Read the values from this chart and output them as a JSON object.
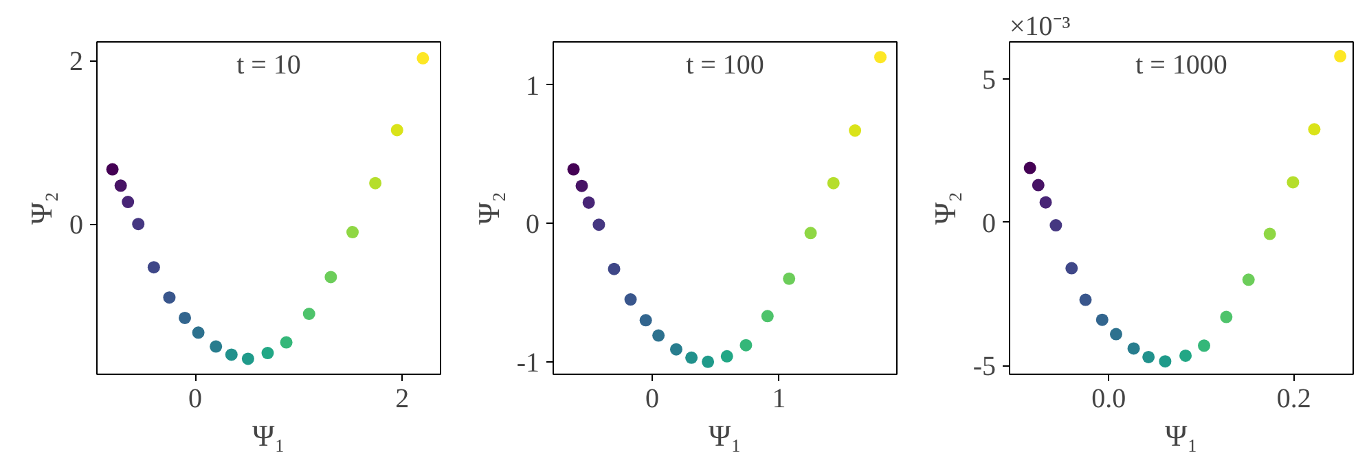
{
  "chart_data": [
    {
      "type": "scatter",
      "title": "t = 10",
      "xlabel": "Ψ₁",
      "ylabel": "Ψ₂",
      "marker": "circle",
      "xlim": [
        -0.95,
        2.37
      ],
      "ylim": [
        -1.84,
        2.23
      ],
      "xticks": [
        0,
        2
      ],
      "yticks": [
        0,
        2
      ],
      "x": [
        -0.8,
        -0.72,
        -0.65,
        -0.55,
        -0.4,
        -0.25,
        -0.1,
        0.03,
        0.2,
        0.35,
        0.51,
        0.7,
        0.88,
        1.1,
        1.31,
        1.52,
        1.74,
        1.95,
        2.2
      ],
      "values": [
        0.67,
        0.47,
        0.27,
        0.0,
        -0.53,
        -0.9,
        -1.15,
        -1.33,
        -1.5,
        -1.6,
        -1.65,
        -1.58,
        -1.45,
        -1.1,
        -0.65,
        -0.1,
        0.5,
        1.15,
        2.03
      ],
      "colors": [
        "#440154",
        "#471365",
        "#482576",
        "#453781",
        "#3f4788",
        "#39568c",
        "#32658e",
        "#2d718e",
        "#287d8e",
        "#21918c",
        "#1f9a8a",
        "#22a785",
        "#35b779",
        "#4ec36b",
        "#6ccd5a",
        "#8fd744",
        "#b5de2b",
        "#dae319",
        "#fde725"
      ]
    },
    {
      "type": "scatter",
      "title": "t = 100",
      "xlabel": "Ψ₁",
      "ylabel": "Ψ₂",
      "marker": "circle",
      "xlim": [
        -0.78,
        1.93
      ],
      "ylim": [
        -1.09,
        1.31
      ],
      "xticks": [
        0,
        1
      ],
      "yticks": [
        -1,
        0,
        1
      ],
      "x": [
        -0.62,
        -0.555,
        -0.5,
        -0.42,
        -0.3,
        -0.17,
        -0.05,
        0.05,
        0.19,
        0.31,
        0.44,
        0.59,
        0.74,
        0.91,
        1.08,
        1.25,
        1.43,
        1.6,
        1.8
      ],
      "values": [
        0.39,
        0.27,
        0.15,
        -0.01,
        -0.33,
        -0.55,
        -0.7,
        -0.81,
        -0.91,
        -0.97,
        -1.0,
        -0.96,
        -0.88,
        -0.67,
        -0.4,
        -0.07,
        0.29,
        0.67,
        1.2
      ],
      "colors": [
        "#440154",
        "#471365",
        "#482576",
        "#453781",
        "#3f4788",
        "#39568c",
        "#32658e",
        "#2d718e",
        "#287d8e",
        "#21918c",
        "#1f9a8a",
        "#22a785",
        "#35b779",
        "#4ec36b",
        "#6ccd5a",
        "#8fd744",
        "#b5de2b",
        "#dae319",
        "#fde725"
      ]
    },
    {
      "type": "scatter",
      "title": "t = 1000",
      "xlabel": "Ψ₁",
      "ylabel": "Ψ₂",
      "marker": "circle",
      "annotations": [
        "×10⁻³"
      ],
      "xlim": [
        -0.107,
        0.264
      ],
      "ylim": [
        -5.3,
        6.3
      ],
      "xticks": [
        {
          "value": 0,
          "label": "0.0"
        },
        0.2
      ],
      "yticks": [
        -5,
        0,
        5
      ],
      "x": [
        -0.085,
        -0.076,
        -0.068,
        -0.057,
        -0.04,
        -0.025,
        -0.007,
        0.008,
        0.027,
        0.043,
        0.061,
        0.083,
        0.103,
        0.127,
        0.151,
        0.174,
        0.199,
        0.222,
        0.25
      ],
      "values": [
        1.9,
        1.3,
        0.7,
        -0.1,
        -1.6,
        -2.7,
        -3.4,
        -3.9,
        -4.4,
        -4.7,
        -4.85,
        -4.65,
        -4.3,
        -3.3,
        -2.0,
        -0.4,
        1.4,
        3.25,
        5.8
      ],
      "colors": [
        "#440154",
        "#471365",
        "#482576",
        "#453781",
        "#3f4788",
        "#39568c",
        "#32658e",
        "#2d718e",
        "#287d8e",
        "#21918c",
        "#1f9a8a",
        "#22a785",
        "#35b779",
        "#4ec36b",
        "#6ccd5a",
        "#8fd744",
        "#b5de2b",
        "#dae319",
        "#fde725"
      ]
    }
  ]
}
